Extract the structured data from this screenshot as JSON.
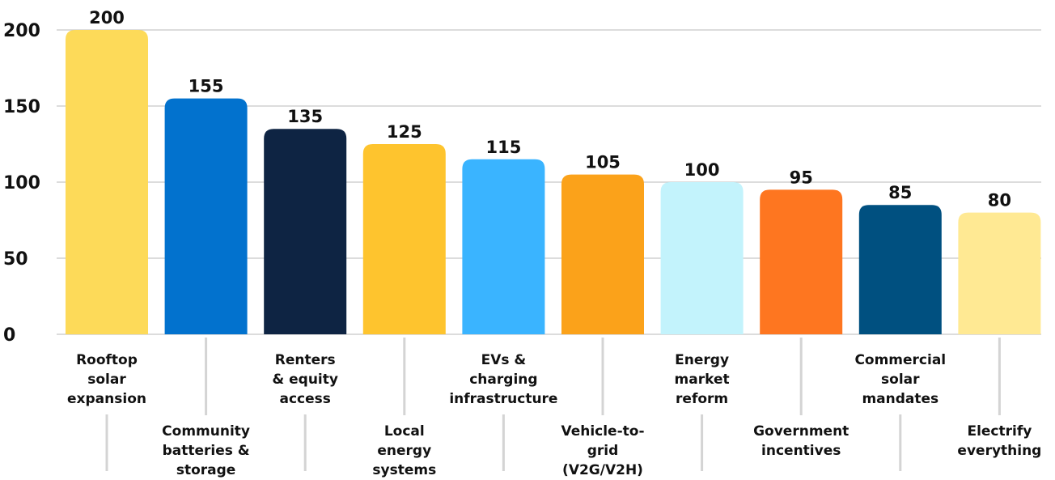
{
  "chart_data": {
    "type": "bar",
    "title": "",
    "xlabel": "",
    "ylabel": "",
    "ylim": [
      0,
      200
    ],
    "yticks": [
      0,
      50,
      100,
      150,
      200
    ],
    "grid": true,
    "categories": [
      "Rooftop solar expansion",
      "Community batteries & storage",
      "Renters & equity access",
      "Local energy systems",
      "EVs & charging infrastructure",
      "Vehicle-to-grid (V2G/V2H)",
      "Energy market reform",
      "Government incentives",
      "Commercial solar mandates",
      "Electrify everything"
    ],
    "category_lines": [
      [
        "Rooftop",
        "solar",
        "expansion"
      ],
      [
        "Community",
        "batteries &",
        "storage"
      ],
      [
        "Renters",
        "& equity",
        "access"
      ],
      [
        "Local",
        "energy",
        "systems"
      ],
      [
        "EVs &",
        "charging",
        "infrastructure"
      ],
      [
        "Vehicle-to-",
        "grid",
        "(V2G/V2H)"
      ],
      [
        "Energy",
        "market",
        "reform"
      ],
      [
        "Government",
        "incentives"
      ],
      [
        "Commercial",
        "solar",
        "mandates"
      ],
      [
        "Electrify",
        "everything"
      ]
    ],
    "values": [
      200,
      155,
      135,
      125,
      115,
      105,
      100,
      95,
      85,
      80
    ],
    "colors": [
      "#FDDA59",
      "#0272CE",
      "#0E2443",
      "#FEC42E",
      "#3AB4FF",
      "#FBA21A",
      "#C3F3FC",
      "#FE7620",
      "#005080",
      "#FFE993"
    ]
  }
}
